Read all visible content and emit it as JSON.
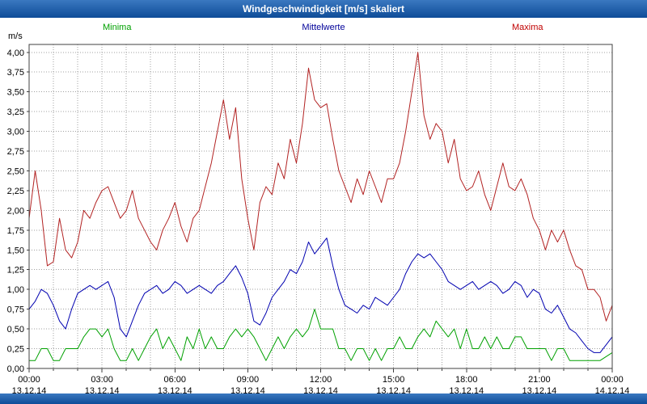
{
  "title": "Windgeschwindigkeit [m/s] skaliert",
  "colors": {
    "titlebar": "#1b5bab",
    "grid": "#a0a0a0",
    "plot_border": "#404040",
    "minima": "#00A000",
    "mittelwerte": "#0000B0",
    "maxima": "#B22222"
  },
  "chart_data": {
    "type": "line",
    "title": "Windgeschwindigkeit [m/s] skaliert",
    "y_unit": "m/s",
    "ylim": [
      0,
      4.1
    ],
    "grid": "dotted",
    "legend_position": "top",
    "sample_interval_minutes": 15,
    "y_ticks": {
      "values": [
        0,
        0.25,
        0.5,
        0.75,
        1.0,
        1.25,
        1.5,
        1.75,
        2.0,
        2.25,
        2.5,
        2.75,
        3.0,
        3.25,
        3.5,
        3.75,
        4.0
      ],
      "labels": [
        "0,00",
        "0,25",
        "0,50",
        "0,75",
        "1,00",
        "1,25",
        "1,50",
        "1,75",
        "2,00",
        "2,25",
        "2,50",
        "2,75",
        "3,00",
        "3,25",
        "3,50",
        "3,75",
        "4,00"
      ]
    },
    "x_ticks": [
      {
        "time": "00:00",
        "date": "13.12.14",
        "hour": 0
      },
      {
        "time": "03:00",
        "date": "13.12.14",
        "hour": 3
      },
      {
        "time": "06:00",
        "date": "13.12.14",
        "hour": 6
      },
      {
        "time": "09:00",
        "date": "13.12.14",
        "hour": 9
      },
      {
        "time": "12:00",
        "date": "13.12.14",
        "hour": 12
      },
      {
        "time": "15:00",
        "date": "13.12.14",
        "hour": 15
      },
      {
        "time": "18:00",
        "date": "13.12.14",
        "hour": 18
      },
      {
        "time": "21:00",
        "date": "13.12.14",
        "hour": 21
      },
      {
        "time": "00:00",
        "date": "14.12.14",
        "hour": 24
      }
    ],
    "hours_total": 24,
    "minor_grid_step_hours": 1,
    "series": [
      {
        "name": "Minima",
        "color": "#00A000",
        "values": [
          0.1,
          0.1,
          0.25,
          0.25,
          0.1,
          0.1,
          0.25,
          0.25,
          0.25,
          0.4,
          0.5,
          0.5,
          0.4,
          0.5,
          0.25,
          0.1,
          0.1,
          0.25,
          0.1,
          0.25,
          0.4,
          0.5,
          0.25,
          0.4,
          0.25,
          0.1,
          0.4,
          0.25,
          0.5,
          0.25,
          0.4,
          0.25,
          0.25,
          0.4,
          0.5,
          0.4,
          0.5,
          0.4,
          0.25,
          0.1,
          0.25,
          0.4,
          0.25,
          0.4,
          0.5,
          0.4,
          0.5,
          0.75,
          0.5,
          0.5,
          0.5,
          0.25,
          0.25,
          0.1,
          0.25,
          0.25,
          0.1,
          0.25,
          0.1,
          0.25,
          0.25,
          0.4,
          0.25,
          0.25,
          0.4,
          0.5,
          0.4,
          0.6,
          0.5,
          0.4,
          0.5,
          0.25,
          0.5,
          0.25,
          0.25,
          0.4,
          0.25,
          0.4,
          0.25,
          0.25,
          0.4,
          0.4,
          0.25,
          0.25,
          0.25,
          0.25,
          0.1,
          0.25,
          0.25,
          0.1,
          0.1,
          0.1,
          0.1,
          0.1,
          0.1,
          0.15,
          0.2
        ]
      },
      {
        "name": "Mittelwerte",
        "color": "#0000B0",
        "values": [
          0.75,
          0.85,
          1.0,
          0.95,
          0.8,
          0.6,
          0.5,
          0.75,
          0.95,
          1.0,
          1.05,
          1.0,
          1.05,
          1.1,
          0.9,
          0.5,
          0.4,
          0.6,
          0.8,
          0.95,
          1.0,
          1.05,
          0.95,
          1.0,
          1.1,
          1.05,
          0.95,
          1.0,
          1.05,
          1.0,
          0.95,
          1.05,
          1.1,
          1.2,
          1.3,
          1.15,
          0.95,
          0.6,
          0.55,
          0.7,
          0.9,
          1.0,
          1.1,
          1.25,
          1.2,
          1.35,
          1.6,
          1.45,
          1.55,
          1.65,
          1.3,
          1.0,
          0.8,
          0.75,
          0.7,
          0.8,
          0.75,
          0.9,
          0.85,
          0.8,
          0.9,
          1.0,
          1.2,
          1.35,
          1.45,
          1.4,
          1.45,
          1.35,
          1.25,
          1.1,
          1.05,
          1.0,
          1.05,
          1.1,
          1.0,
          1.05,
          1.1,
          1.05,
          0.95,
          1.0,
          1.1,
          1.05,
          0.9,
          1.0,
          0.95,
          0.75,
          0.7,
          0.8,
          0.65,
          0.5,
          0.45,
          0.35,
          0.25,
          0.2,
          0.2,
          0.3,
          0.4
        ]
      },
      {
        "name": "Maxima",
        "color": "#B22222",
        "values": [
          1.9,
          2.5,
          2.0,
          1.3,
          1.35,
          1.9,
          1.5,
          1.4,
          1.6,
          2.0,
          1.9,
          2.1,
          2.25,
          2.3,
          2.1,
          1.9,
          2.0,
          2.25,
          1.9,
          1.75,
          1.6,
          1.5,
          1.75,
          1.9,
          2.1,
          1.8,
          1.6,
          1.9,
          2.0,
          2.3,
          2.6,
          3.0,
          3.4,
          2.9,
          3.3,
          2.4,
          1.9,
          1.5,
          2.1,
          2.3,
          2.2,
          2.6,
          2.4,
          2.9,
          2.6,
          3.1,
          3.8,
          3.4,
          3.3,
          3.35,
          2.9,
          2.5,
          2.3,
          2.1,
          2.4,
          2.2,
          2.5,
          2.3,
          2.1,
          2.4,
          2.4,
          2.6,
          3.0,
          3.5,
          4.0,
          3.2,
          2.9,
          3.1,
          3.0,
          2.6,
          2.9,
          2.4,
          2.25,
          2.3,
          2.5,
          2.2,
          2.0,
          2.3,
          2.6,
          2.3,
          2.25,
          2.4,
          2.2,
          1.9,
          1.75,
          1.5,
          1.75,
          1.6,
          1.75,
          1.5,
          1.3,
          1.25,
          1.0,
          1.0,
          0.9,
          0.6,
          0.8
        ]
      }
    ]
  }
}
